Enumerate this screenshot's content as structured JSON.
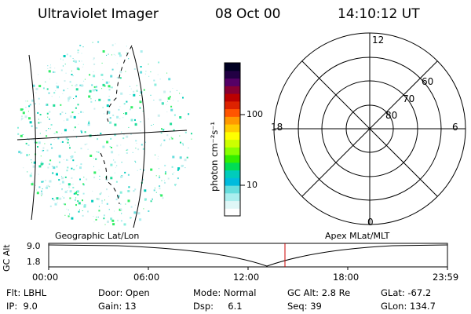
{
  "header": {
    "title": "Ultraviolet Imager",
    "date": "08 Oct 00",
    "time": "14:10:12 UT"
  },
  "colorbar": {
    "label": "photon cm⁻²s⁻¹",
    "ticks": [
      "100",
      "10"
    ],
    "colors": [
      "#000022",
      "#220044",
      "#550066",
      "#880033",
      "#bb0000",
      "#dd2200",
      "#ff5500",
      "#ff9900",
      "#ffcc00",
      "#ffff00",
      "#ccff00",
      "#88ff00",
      "#33ee00",
      "#00dd55",
      "#00ccbb",
      "#00bbdd",
      "#66dddd",
      "#aaeeee",
      "#dff7f7",
      "#ffffff"
    ]
  },
  "polar": {
    "top": "12",
    "bottom": "0",
    "left": "18",
    "right": "6",
    "lat_labels": [
      "60",
      "70",
      "80"
    ]
  },
  "labels": {
    "geo": "Geographic Lat/Lon",
    "apex": "Apex MLat/MLT"
  },
  "timeline": {
    "axis_label": "GC Alt",
    "y_top": "9.0",
    "y_bottom": "1.8",
    "ticks": [
      "00:00",
      "06:00",
      "12:00",
      "18:00",
      "23:59"
    ],
    "marker_color": "#cc0000"
  },
  "footer": {
    "r1": [
      "Flt: LBHL",
      "Door: Open",
      "Mode: Normal",
      "GC Alt: 2.8 Re",
      "GLat: -67.2"
    ],
    "r2": [
      "IP:  9.0",
      "Gain: 13",
      "Dsp:     6.1",
      "Seq: 39",
      "GLon: 134.7"
    ]
  }
}
